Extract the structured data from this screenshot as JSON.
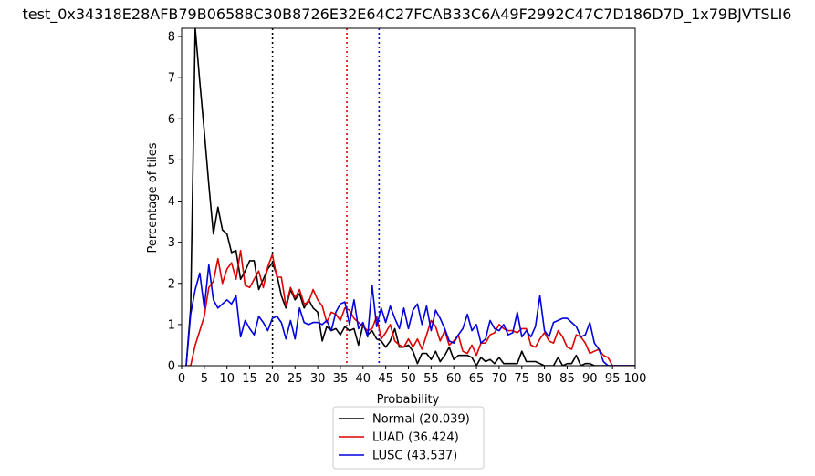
{
  "chart_data": {
    "type": "line",
    "title": "test_0x34318E28AFB79B06588C30B8726E32E64C27FCAB33C6A49F2992C47C7D186D7D_1x79BJVTSLI6",
    "xlabel": "Probability",
    "ylabel": "Percentage of tiles",
    "xlim": [
      0,
      100
    ],
    "ylim": [
      0,
      8.2
    ],
    "xticks": [
      "0",
      "5",
      "10",
      "15",
      "20",
      "25",
      "30",
      "35",
      "40",
      "45",
      "50",
      "55",
      "60",
      "65",
      "70",
      "75",
      "80",
      "85",
      "90",
      "95",
      "100"
    ],
    "yticks": [
      "0",
      "1",
      "2",
      "3",
      "4",
      "5",
      "6",
      "7",
      "8"
    ],
    "grid": false,
    "legend_position": "below",
    "vlines": [
      {
        "x": 20.039,
        "color": "#000000"
      },
      {
        "x": 36.424,
        "color": "#dd0000"
      },
      {
        "x": 43.537,
        "color": "#0000dd"
      }
    ],
    "series": [
      {
        "name": "Normal (20.039)",
        "color": "#000000",
        "x": [
          1,
          2,
          3,
          4,
          5,
          6,
          7,
          8,
          9,
          10,
          11,
          12,
          13,
          14,
          15,
          16,
          17,
          18,
          19,
          20,
          21,
          22,
          23,
          24,
          25,
          26,
          27,
          28,
          29,
          30,
          31,
          32,
          33,
          34,
          35,
          36,
          37,
          38,
          39,
          40,
          41,
          42,
          43,
          44,
          45,
          46,
          47,
          48,
          49,
          50,
          51,
          52,
          53,
          54,
          55,
          56,
          57,
          58,
          59,
          60,
          61,
          62,
          63,
          64,
          65,
          66,
          67,
          68,
          69,
          70,
          71,
          72,
          73,
          74,
          75,
          76,
          77,
          78,
          79,
          80,
          81,
          82,
          83,
          84,
          85,
          86,
          87,
          88,
          89,
          90,
          91,
          92,
          93,
          94,
          95,
          96,
          97,
          98,
          99,
          100
        ],
        "values": [
          0,
          1.4,
          8.2,
          6.9,
          5.7,
          4.4,
          3.2,
          3.85,
          3.3,
          3.2,
          2.75,
          2.8,
          2.1,
          2.3,
          2.55,
          2.55,
          1.85,
          2.1,
          2.35,
          2.5,
          2.2,
          1.7,
          1.4,
          1.85,
          1.6,
          1.75,
          1.4,
          1.6,
          1.4,
          1.3,
          0.6,
          0.95,
          0.85,
          0.9,
          0.75,
          0.95,
          0.85,
          0.9,
          0.5,
          1.0,
          0.75,
          0.85,
          0.65,
          0.6,
          0.45,
          0.6,
          0.9,
          0.45,
          0.45,
          0.5,
          0.35,
          0.05,
          0.3,
          0.3,
          0.15,
          0.35,
          0.1,
          0.25,
          0.45,
          0.15,
          0.25,
          0.25,
          0.25,
          0.2,
          0,
          0.2,
          0.1,
          0.15,
          0.05,
          0.2,
          0.05,
          0.05,
          0.05,
          0.05,
          0.35,
          0.1,
          0.1,
          0.1,
          0.05,
          0,
          0,
          0,
          0.2,
          0,
          0.05,
          0.05,
          0.25,
          0,
          0.05,
          0.05,
          0,
          0,
          0,
          0,
          0,
          0,
          0,
          0,
          0,
          0
        ]
      },
      {
        "name": "LUAD (36.424)",
        "color": "#dd0000",
        "x": [
          1,
          2,
          3,
          4,
          5,
          6,
          7,
          8,
          9,
          10,
          11,
          12,
          13,
          14,
          15,
          16,
          17,
          18,
          19,
          20,
          21,
          22,
          23,
          24,
          25,
          26,
          27,
          28,
          29,
          30,
          31,
          32,
          33,
          34,
          35,
          36,
          37,
          38,
          39,
          40,
          41,
          42,
          43,
          44,
          45,
          46,
          47,
          48,
          49,
          50,
          51,
          52,
          53,
          54,
          55,
          56,
          57,
          58,
          59,
          60,
          61,
          62,
          63,
          64,
          65,
          66,
          67,
          68,
          69,
          70,
          71,
          72,
          73,
          74,
          75,
          76,
          77,
          78,
          79,
          80,
          81,
          82,
          83,
          84,
          85,
          86,
          87,
          88,
          89,
          90,
          91,
          92,
          93,
          94,
          95,
          96,
          97,
          98,
          99,
          100
        ],
        "values": [
          0,
          0,
          0.5,
          0.85,
          1.2,
          1.9,
          2.05,
          2.6,
          2.0,
          2.35,
          2.5,
          2.1,
          2.8,
          1.95,
          1.9,
          2.1,
          2.3,
          1.9,
          2.4,
          2.7,
          2.15,
          2.15,
          1.45,
          1.9,
          1.65,
          1.85,
          1.5,
          1.55,
          1.85,
          1.6,
          1.45,
          1.05,
          1.3,
          1.25,
          1.1,
          1.4,
          1.35,
          1.15,
          1.05,
          0.95,
          0.85,
          0.9,
          1.2,
          0.65,
          0.8,
          1.0,
          0.6,
          0.5,
          0.45,
          0.65,
          0.45,
          0.65,
          0.4,
          0.75,
          1.1,
          0.95,
          0.6,
          0.85,
          0.5,
          0.6,
          0.75,
          0.35,
          0.3,
          0.5,
          0.25,
          0.55,
          0.55,
          0.75,
          0.8,
          1.0,
          0.9,
          0.85,
          0.85,
          0.8,
          0.9,
          0.9,
          0.5,
          0.45,
          0.65,
          0.8,
          0.6,
          0.55,
          0.85,
          0.7,
          0.45,
          0.4,
          0.75,
          0.7,
          0.55,
          0.3,
          0.35,
          0.4,
          0.25,
          0.2,
          0,
          0,
          0,
          0,
          0,
          0
        ]
      },
      {
        "name": "LUSC (43.537)",
        "color": "#0000dd",
        "x": [
          1,
          2,
          3,
          4,
          5,
          6,
          7,
          8,
          9,
          10,
          11,
          12,
          13,
          14,
          15,
          16,
          17,
          18,
          19,
          20,
          21,
          22,
          23,
          24,
          25,
          26,
          27,
          28,
          29,
          30,
          31,
          32,
          33,
          34,
          35,
          36,
          37,
          38,
          39,
          40,
          41,
          42,
          43,
          44,
          45,
          46,
          47,
          48,
          49,
          50,
          51,
          52,
          53,
          54,
          55,
          56,
          57,
          58,
          59,
          60,
          61,
          62,
          63,
          64,
          65,
          66,
          67,
          68,
          69,
          70,
          71,
          72,
          73,
          74,
          75,
          76,
          77,
          78,
          79,
          80,
          81,
          82,
          83,
          84,
          85,
          86,
          87,
          88,
          89,
          90,
          91,
          92,
          93,
          94,
          95,
          96,
          97,
          98,
          99,
          100
        ],
        "values": [
          0,
          1.25,
          1.85,
          2.25,
          1.4,
          2.45,
          1.6,
          1.4,
          1.5,
          1.6,
          1.5,
          1.7,
          0.7,
          1.1,
          0.9,
          0.75,
          1.2,
          1.05,
          0.85,
          1.15,
          1.2,
          1.05,
          0.65,
          1.1,
          0.65,
          1.4,
          1.05,
          1.0,
          1.05,
          1.05,
          1.0,
          1.1,
          0.85,
          1.3,
          1.5,
          1.55,
          1.0,
          1.6,
          0.9,
          1.05,
          0.7,
          1.95,
          0.95,
          1.4,
          1.05,
          1.45,
          1.15,
          0.9,
          1.4,
          0.9,
          1.35,
          1.5,
          1.0,
          1.45,
          0.85,
          1.35,
          1.15,
          0.9,
          0.6,
          0.55,
          0.75,
          0.9,
          1.25,
          0.85,
          1.0,
          0.55,
          0.65,
          1.1,
          0.9,
          0.85,
          1.0,
          0.75,
          0.8,
          1.3,
          0.7,
          0.85,
          0.7,
          0.95,
          1.7,
          0.85,
          0.7,
          1.05,
          1.1,
          1.15,
          1.15,
          1.05,
          0.95,
          0.7,
          0.75,
          1.05,
          0.55,
          0.4,
          0.1,
          0,
          0,
          0,
          0,
          0,
          0,
          0
        ]
      }
    ]
  }
}
